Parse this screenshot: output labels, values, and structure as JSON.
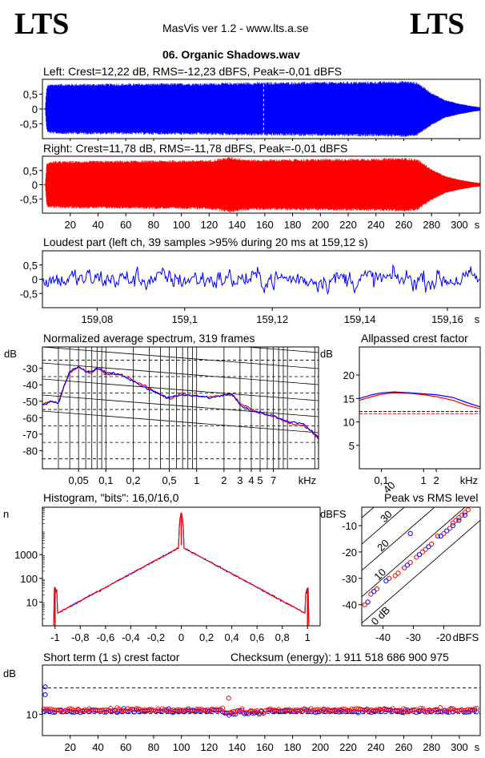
{
  "header": {
    "logo_left": "LTS",
    "logo_right": "LTS",
    "app": "MasVis ver 1.2 - www.lts.a.se",
    "file": "06. Organic Shadows.wav"
  },
  "colors": {
    "left": "#0000ff",
    "right": "#ff0000",
    "dashes": "#000000"
  },
  "chart_data": [
    {
      "id": "wave-left",
      "type": "line",
      "title": "Left: Crest=12,22 dB, RMS=-12,23 dBFS, Peak=-0,01 dBFS",
      "yticks": [
        "0,5",
        "0",
        "-0,5"
      ],
      "yvalues": [
        0.5,
        0,
        -0.5
      ],
      "ylim": [
        -1,
        1
      ],
      "xlim": [
        0,
        315
      ],
      "envelope": [
        [
          0,
          0.0
        ],
        [
          2,
          0.02
        ],
        [
          3,
          0.7
        ],
        [
          4,
          0.82
        ],
        [
          8,
          0.85
        ],
        [
          60,
          0.86
        ],
        [
          120,
          0.88
        ],
        [
          150,
          0.9
        ],
        [
          200,
          0.92
        ],
        [
          240,
          0.93
        ],
        [
          262,
          0.95
        ],
        [
          270,
          0.9
        ],
        [
          280,
          0.55
        ],
        [
          290,
          0.3
        ],
        [
          300,
          0.18
        ],
        [
          310,
          0.09
        ],
        [
          315,
          0.06
        ]
      ],
      "peaks": [
        [
          159.12,
          0.99
        ]
      ]
    },
    {
      "id": "wave-right",
      "type": "line",
      "title": "Right: Crest=11,78 dB, RMS=-11,78 dBFS, Peak=-0,01 dBFS",
      "yticks": [
        "0,5",
        "0",
        "-0,5"
      ],
      "yvalues": [
        0.5,
        0,
        -0.5
      ],
      "ylim": [
        -1,
        1
      ],
      "xlim": [
        0,
        315
      ],
      "xticks": [
        "20",
        "40",
        "60",
        "80",
        "100",
        "120",
        "140",
        "160",
        "180",
        "200",
        "220",
        "240",
        "260",
        "280",
        "300"
      ],
      "xtickvalues": [
        20,
        40,
        60,
        80,
        100,
        120,
        140,
        160,
        180,
        200,
        220,
        240,
        260,
        280,
        300
      ],
      "xunit": "s",
      "envelope": [
        [
          0,
          0.0
        ],
        [
          2,
          0.02
        ],
        [
          3,
          0.72
        ],
        [
          4,
          0.8
        ],
        [
          8,
          0.83
        ],
        [
          60,
          0.85
        ],
        [
          120,
          0.87
        ],
        [
          135,
          0.98
        ],
        [
          150,
          0.89
        ],
        [
          200,
          0.91
        ],
        [
          240,
          0.93
        ],
        [
          262,
          0.95
        ],
        [
          270,
          0.9
        ],
        [
          280,
          0.55
        ],
        [
          290,
          0.3
        ],
        [
          300,
          0.18
        ],
        [
          310,
          0.09
        ],
        [
          315,
          0.06
        ]
      ]
    },
    {
      "id": "loudest",
      "type": "line",
      "title": "Loudest part (left  ch, 39 samples >95% during 20 ms at 159,12 s)",
      "yticks": [
        "0,5",
        "0",
        "-0,5"
      ],
      "yvalues": [
        0.5,
        0,
        -0.5
      ],
      "ylim": [
        -1,
        1
      ],
      "xlim": [
        159.0675,
        159.1675
      ],
      "xticks": [
        "159,08",
        "159,1",
        "159,12",
        "159,14",
        "159,16"
      ],
      "xtickvalues": [
        159.08,
        159.1,
        159.12,
        159.14,
        159.16
      ],
      "xunit": "s"
    },
    {
      "id": "spectrum",
      "type": "line",
      "title": "Normalized average spectrum, 319 frames",
      "ylabel": "dB",
      "yticks": [
        "-30",
        "-40",
        "-50",
        "-60",
        "-70",
        "-80"
      ],
      "yvalues": [
        -30,
        -40,
        -50,
        -60,
        -70,
        -80
      ],
      "ylim": [
        -91,
        -17
      ],
      "xlim": [
        0.02,
        22
      ],
      "xscale": "log",
      "xticks": [
        "0,05",
        "0,1",
        "0,2",
        "0,5",
        "1",
        "2",
        "3",
        "4",
        "5",
        "7"
      ],
      "xtickvalues": [
        0.05,
        0.1,
        0.2,
        0.5,
        1,
        2,
        3,
        4,
        5,
        7
      ],
      "xunit": "kHz",
      "series": [
        {
          "color": "#ff0000",
          "x": [
            0.02,
            0.025,
            0.03,
            0.035,
            0.04,
            0.05,
            0.06,
            0.07,
            0.08,
            0.09,
            0.1,
            0.12,
            0.15,
            0.2,
            0.3,
            0.4,
            0.5,
            0.7,
            1,
            1.5,
            2,
            2.5,
            3,
            4,
            5,
            7,
            10,
            15,
            20,
            22
          ],
          "y": [
            -52,
            -50,
            -51,
            -40,
            -33,
            -29,
            -32,
            -33,
            -30,
            -31,
            -34,
            -33,
            -34,
            -37,
            -42,
            -46,
            -49,
            -45,
            -47,
            -47,
            -46,
            -46,
            -51,
            -55,
            -57,
            -59,
            -63,
            -65,
            -70,
            -73
          ]
        },
        {
          "color": "#0000ff",
          "x": [
            0.02,
            0.025,
            0.03,
            0.035,
            0.04,
            0.05,
            0.06,
            0.07,
            0.08,
            0.09,
            0.1,
            0.12,
            0.15,
            0.2,
            0.3,
            0.4,
            0.5,
            0.7,
            1,
            1.5,
            2,
            2.5,
            3,
            4,
            5,
            7,
            10,
            15,
            20,
            22
          ],
          "y": [
            -52,
            -50,
            -51,
            -40,
            -32,
            -29,
            -32,
            -32,
            -30,
            -31,
            -33,
            -33,
            -34,
            -38,
            -43,
            -46,
            -48,
            -46,
            -47,
            -48,
            -46,
            -46,
            -52,
            -56,
            -57,
            -59,
            -62,
            -64,
            -70,
            -72
          ]
        }
      ]
    },
    {
      "id": "allpass",
      "type": "line",
      "title": "Allpassed crest factor",
      "ylabel": "dB",
      "yticks": [
        "20",
        "15",
        "10",
        "5"
      ],
      "yvalues": [
        20,
        15,
        10,
        5
      ],
      "ylim": [
        0,
        26
      ],
      "xlim": [
        0.03,
        22
      ],
      "xscale": "log",
      "xticks": [
        "0,1",
        "1",
        "2",
        "kHz"
      ],
      "xtickvalues": [
        0.1,
        1,
        2
      ],
      "xunit": "kHz",
      "series": [
        {
          "color": "#ff0000",
          "x": [
            0.03,
            0.06,
            0.1,
            0.2,
            0.5,
            1,
            2,
            5,
            10,
            22
          ],
          "y": [
            14.6,
            15.4,
            15.9,
            16.2,
            16.1,
            15.8,
            15.4,
            14.6,
            13.6,
            12.8
          ]
        },
        {
          "color": "#0000ff",
          "x": [
            0.03,
            0.06,
            0.1,
            0.2,
            0.5,
            1,
            2,
            5,
            10,
            22
          ],
          "y": [
            15.0,
            15.8,
            16.2,
            16.4,
            16.2,
            16.0,
            15.8,
            15.2,
            14.2,
            13.2
          ]
        }
      ],
      "levels": [
        12.22,
        11.78
      ]
    },
    {
      "id": "histogram",
      "type": "line",
      "title": "Histogram, \"bits\": 16,0/16,0",
      "ylabel": "n",
      "yticks": [
        "1000",
        "100",
        "10"
      ],
      "yvalues": [
        1000,
        100,
        10
      ],
      "yscale": "log",
      "ylim": [
        1,
        100000
      ],
      "xlim": [
        -1.1,
        1.1
      ],
      "xticks": [
        "-1",
        "-0,8",
        "-0,6",
        "-0,4",
        "-0,2",
        "0",
        "0,2",
        "0,4",
        "0,6",
        "0,8",
        "1"
      ],
      "xtickvalues": [
        -1,
        -0.8,
        -0.6,
        -0.4,
        -0.2,
        0,
        0.2,
        0.4,
        0.6,
        0.8,
        1
      ]
    },
    {
      "id": "peak-rms",
      "type": "scatter",
      "title": "Peak vs RMS level",
      "ylabel": "dBFS",
      "yticks": [
        "-10",
        "-20",
        "-30",
        "-40"
      ],
      "yvalues": [
        -10,
        -20,
        -30,
        -40
      ],
      "xticks": [
        "-40",
        "-30",
        "-20"
      ],
      "xtickvalues": [
        -40,
        -30,
        -20
      ],
      "xunit": "dBFS",
      "xlim": [
        -47,
        -8
      ],
      "ylim": [
        -48,
        -3
      ],
      "diag_labels": [
        "40",
        "30",
        "20",
        "10",
        "0 dB"
      ],
      "diag_offsets": [
        40,
        30,
        20,
        10,
        0
      ],
      "series": [
        {
          "color": "#ff0000",
          "points": [
            [
              -46,
              -40
            ],
            [
              -44,
              -36
            ],
            [
              -42,
              -34
            ],
            [
              -38,
              -30
            ],
            [
              -36,
              -29
            ],
            [
              -35,
              -28
            ],
            [
              -33,
              -26
            ],
            [
              -31,
              -24
            ],
            [
              -29,
              -22
            ],
            [
              -27,
              -20
            ],
            [
              -26,
              -19
            ],
            [
              -24,
              -17
            ],
            [
              -22,
              -14
            ],
            [
              -20,
              -13
            ],
            [
              -18,
              -11
            ],
            [
              -17,
              -9
            ],
            [
              -16,
              -8
            ],
            [
              -15,
              -7
            ],
            [
              -14,
              -6
            ],
            [
              -13,
              -5
            ],
            [
              -12,
              -4
            ]
          ]
        },
        {
          "color": "#0000ff",
          "points": [
            [
              -45,
              -39
            ],
            [
              -43,
              -35
            ],
            [
              -39,
              -31
            ],
            [
              -32,
              -25
            ],
            [
              -28,
              -21
            ],
            [
              -25,
              -18
            ],
            [
              -21,
              -14
            ],
            [
              -19,
              -12
            ],
            [
              -17,
              -10
            ],
            [
              -15,
              -8
            ],
            [
              -13,
              -6
            ],
            [
              -31,
              -13
            ]
          ]
        }
      ]
    },
    {
      "id": "short-crest",
      "type": "scatter",
      "title": "Short term (1 s) crest factor",
      "checksum": "Checksum (energy):  1 911 518 686 900 975",
      "ylabel": "dB",
      "yticks": [
        "10"
      ],
      "yvalues": [
        10
      ],
      "ylim": [
        4,
        24
      ],
      "xlim": [
        0,
        315
      ],
      "dashed": [
        17.5,
        10.2
      ],
      "xticks": [
        "20",
        "40",
        "60",
        "80",
        "100",
        "120",
        "140",
        "160",
        "180",
        "200",
        "220",
        "240",
        "260",
        "280",
        "300"
      ],
      "xtickvalues": [
        20,
        40,
        60,
        80,
        100,
        120,
        140,
        160,
        180,
        200,
        220,
        240,
        260,
        280,
        300
      ],
      "xunit": "s"
    }
  ]
}
